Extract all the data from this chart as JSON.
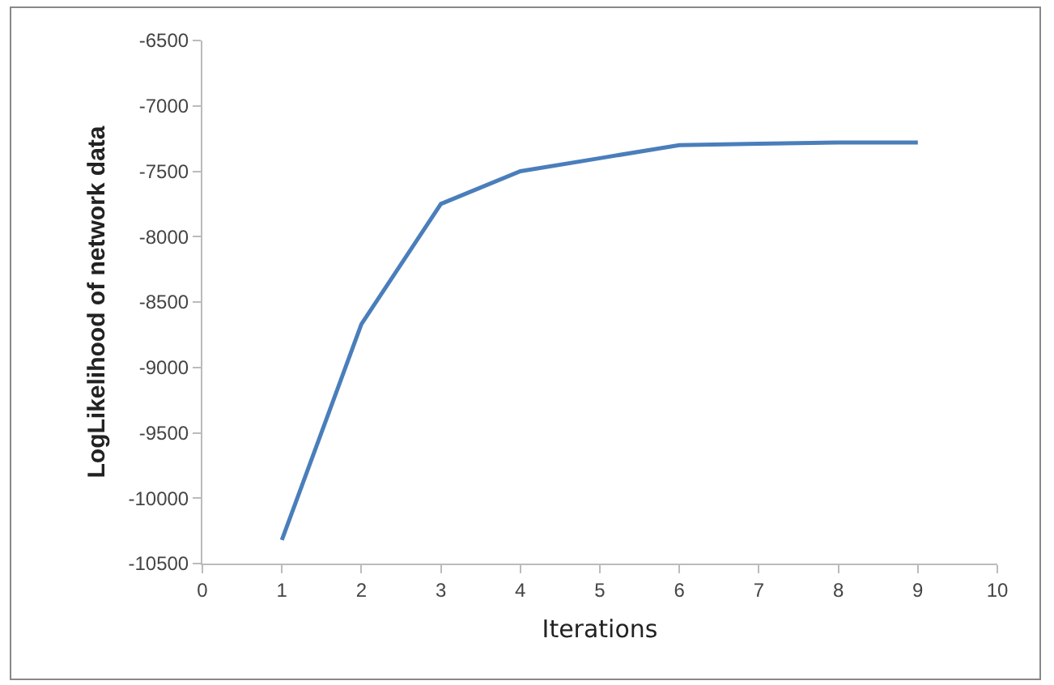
{
  "chart_data": {
    "type": "line",
    "xlabel": "Iterations",
    "ylabel": "LogLikelihood of network data",
    "x": [
      1,
      2,
      3,
      4,
      5,
      6,
      7,
      8,
      9
    ],
    "series": [
      {
        "color": "#4a7ebb",
        "values": [
          -10320,
          -8670,
          -7750,
          -7500,
          -7400,
          -7300,
          -7290,
          -7280,
          -7280
        ]
      }
    ],
    "xlim": [
      0,
      10
    ],
    "xticks": [
      0,
      1,
      2,
      3,
      4,
      5,
      6,
      7,
      8,
      9,
      10
    ],
    "ylim": [
      -10500,
      -6500
    ],
    "yticks": [
      -10500,
      -10000,
      -9500,
      -9000,
      -8500,
      -8000,
      -7500,
      -7000,
      -6500
    ],
    "grid": false,
    "marker": "none",
    "line_style": "solid"
  }
}
